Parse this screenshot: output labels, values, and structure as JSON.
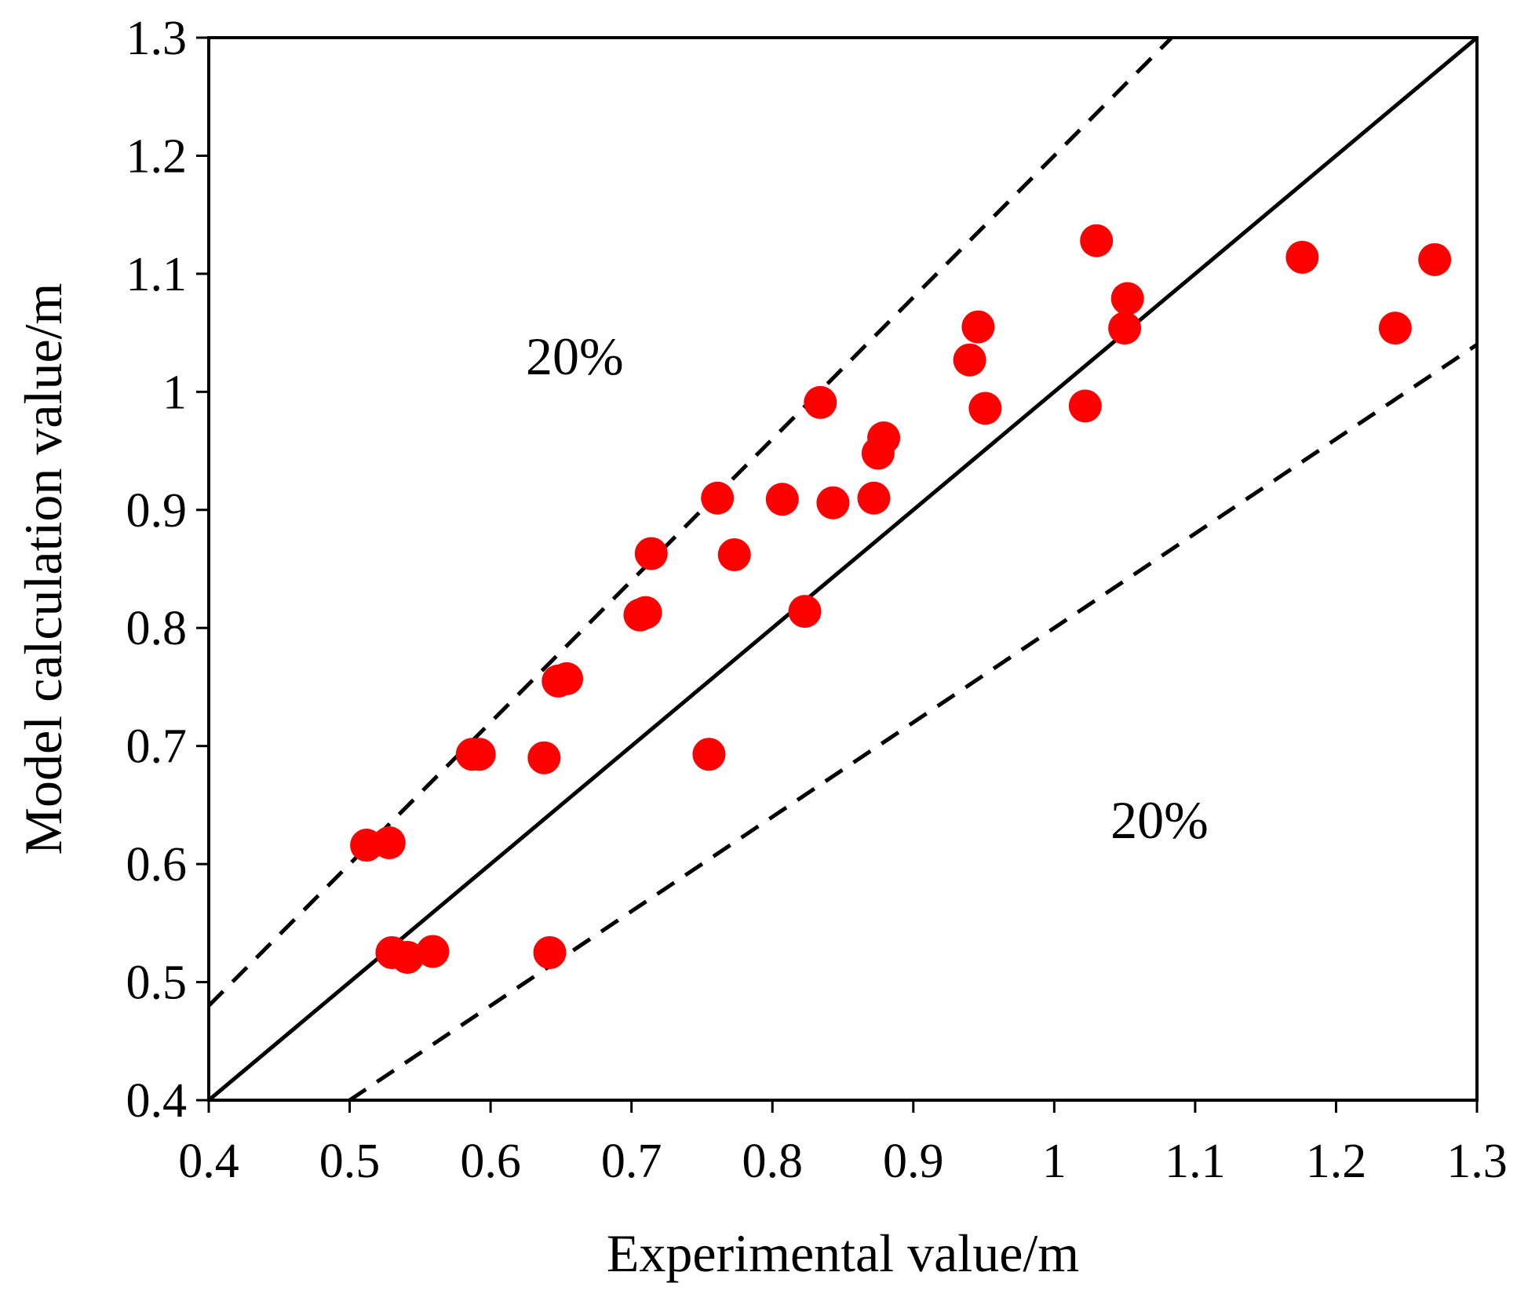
{
  "chart_data": {
    "type": "scatter",
    "xlabel": "Experimental value/m",
    "ylabel": "Model calculation value/m",
    "xlim": [
      0.4,
      1.3
    ],
    "ylim": [
      0.4,
      1.3
    ],
    "xticks": [
      "0.4",
      "0.5",
      "0.6",
      "0.7",
      "0.8",
      "0.9",
      "1",
      "1.1",
      "1.2",
      "1.3"
    ],
    "yticks": [
      "0.4",
      "0.5",
      "0.6",
      "0.7",
      "0.8",
      "0.9",
      "1",
      "1.1",
      "1.2",
      "1.3"
    ],
    "grid": false,
    "reference_lines": [
      {
        "name": "y = x",
        "slope": 1.0,
        "style": "solid"
      },
      {
        "name": "+20%",
        "slope": 1.2,
        "style": "dashed"
      },
      {
        "name": "-20%",
        "slope": 0.8,
        "style": "dashed"
      }
    ],
    "annotations": [
      {
        "text": "20%",
        "x": 0.625,
        "y": 1.015
      },
      {
        "text": "20%",
        "x": 1.04,
        "y": 0.622
      }
    ],
    "marker_color": "#ff0000",
    "series": [
      {
        "name": "data",
        "points": [
          [
            0.512,
            0.616
          ],
          [
            0.528,
            0.618
          ],
          [
            0.53,
            0.525
          ],
          [
            0.541,
            0.521
          ],
          [
            0.559,
            0.526
          ],
          [
            0.642,
            0.525
          ],
          [
            0.587,
            0.693
          ],
          [
            0.592,
            0.693
          ],
          [
            0.638,
            0.69
          ],
          [
            0.755,
            0.693
          ],
          [
            0.648,
            0.755
          ],
          [
            0.654,
            0.757
          ],
          [
            0.706,
            0.811
          ],
          [
            0.71,
            0.813
          ],
          [
            0.823,
            0.814
          ],
          [
            0.714,
            0.863
          ],
          [
            0.773,
            0.862
          ],
          [
            0.761,
            0.91
          ],
          [
            0.807,
            0.909
          ],
          [
            0.843,
            0.906
          ],
          [
            0.872,
            0.91
          ],
          [
            0.875,
            0.948
          ],
          [
            0.879,
            0.961
          ],
          [
            0.834,
            0.991
          ],
          [
            0.94,
            1.027
          ],
          [
            0.946,
            1.055
          ],
          [
            0.951,
            0.986
          ],
          [
            1.022,
            0.988
          ],
          [
            1.03,
            1.128
          ],
          [
            1.05,
            1.054
          ],
          [
            1.052,
            1.079
          ],
          [
            1.176,
            1.114
          ],
          [
            1.242,
            1.054
          ],
          [
            1.27,
            1.112
          ]
        ]
      }
    ]
  }
}
